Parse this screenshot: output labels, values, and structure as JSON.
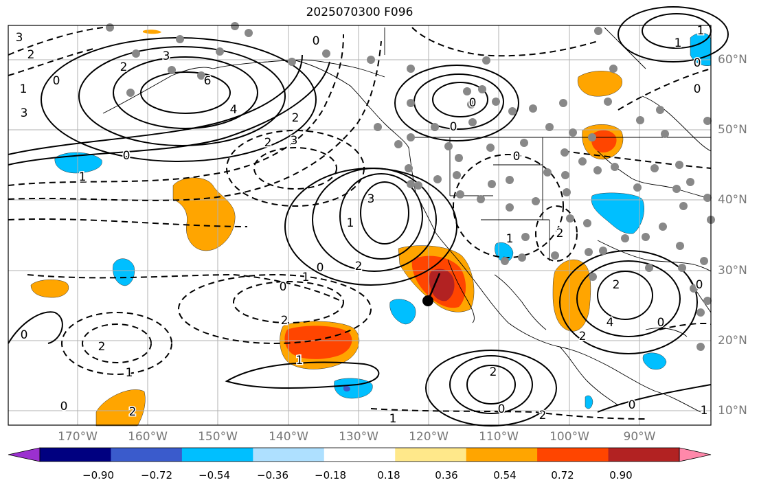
{
  "title": "2025070300 F096",
  "lat_labels": [
    "60°N",
    "50°N",
    "40°N",
    "30°N",
    "20°N",
    "10°N"
  ],
  "lon_labels": [
    "170°W",
    "160°W",
    "150°W",
    "140°W",
    "130°W",
    "120°W",
    "110°W",
    "100°W",
    "90°W"
  ],
  "colorbar": {
    "ticks": [
      "−0.90",
      "−0.72",
      "−0.54",
      "−0.36",
      "−0.18",
      "0.18",
      "0.36",
      "0.54",
      "0.72",
      "0.90"
    ],
    "colors": [
      "#9b30d0",
      "#000080",
      "#3a5bcc",
      "#00bfff",
      "#aee0ff",
      "#ffffff",
      "#ffe88a",
      "#ffa500",
      "#ff4500",
      "#b22222",
      "#ff88aa"
    ]
  },
  "contour_labels": [
    "3",
    "2",
    "2",
    "0",
    "1",
    "3",
    "6",
    "4",
    "3",
    "0",
    "1",
    "2",
    "3",
    "2",
    "3",
    "1",
    "0",
    "2",
    "1",
    "0",
    "2",
    "1",
    "0",
    "2",
    "1",
    "0",
    "2",
    "1",
    "0",
    "2",
    "0",
    "1",
    "0",
    "0",
    "0",
    "2",
    "1",
    "2",
    "4",
    "2",
    "1",
    "0",
    "0",
    "1",
    "0",
    "0",
    "2",
    "0"
  ],
  "fill_colors": {
    "orange": "#ffa500",
    "red": "#ff4500",
    "darkred": "#b22222",
    "cyan": "#00bfff",
    "lightblue": "#aee0ff",
    "pale": "#ffe88a"
  }
}
